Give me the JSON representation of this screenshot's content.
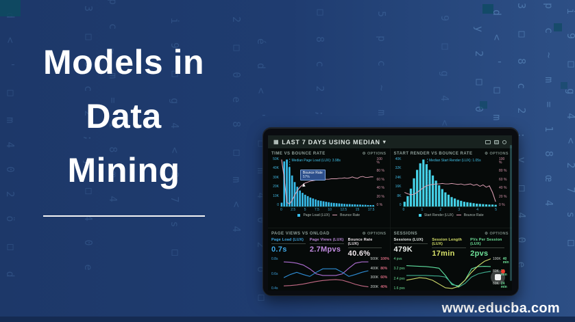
{
  "page": {
    "title_lines": [
      "Models in",
      "Data",
      "Mining"
    ],
    "website": "www.educba.com"
  },
  "background": {
    "glyph_columns": [
      "é d < ' □ m 4 0 2 ö □ d",
      "3 □ 8 c 2 ; y □ 4 0 e",
      "5 p c ~ m = 1 8 œ 4",
      "i 9 □ g 4 < 2 7 s □",
      "y 2 □ 0 e 8 □ m < 4"
    ]
  },
  "dashboard": {
    "header": {
      "title": "LAST 7 DAYS USING MEDIAN"
    }
  },
  "chart_data": [
    {
      "id": "time-vs-bounce",
      "type": "bar",
      "title": "TIME VS BOUNCE RATE",
      "options_label": "OPTIONS",
      "median_label": "Median Page Load (LUX): 3.98s",
      "median_x_frac": 0.1,
      "bar_color": "#38bdeb",
      "line_color": "#dfa0b5",
      "x_ticks": [
        "0",
        "2.5",
        "5",
        "7.5",
        "10",
        "12.5",
        "15",
        "17.5"
      ],
      "y_left_ticks": [
        "50K",
        "40K",
        "30K",
        "20K",
        "10K",
        "0"
      ],
      "y_right_ticks": [
        "100 %",
        "80 %",
        "60 %",
        "40 %",
        "20 %",
        "0 %"
      ],
      "legend": [
        {
          "label": "Page Load (LUX)",
          "type": "square",
          "color": "#38bdeb"
        },
        {
          "label": "Bounce Rate",
          "type": "line",
          "color": "#dfa0b5"
        }
      ],
      "bars": [
        8,
        96,
        100,
        84,
        66,
        52,
        42,
        34,
        29,
        25,
        22,
        19,
        17,
        15,
        13,
        12,
        11,
        10,
        9,
        8,
        7.5,
        7,
        6.5,
        6,
        5.5,
        5,
        5,
        4.5,
        4.5,
        4,
        4,
        3.5,
        3.5,
        3,
        3,
        3
      ],
      "line_pct": [
        100,
        60,
        9,
        5,
        13,
        24,
        34,
        41,
        46,
        50,
        52,
        54,
        55,
        56,
        57,
        57,
        58,
        58,
        58,
        59,
        59,
        59,
        60,
        60,
        61,
        60,
        61,
        63,
        61,
        60,
        63,
        64,
        62,
        62,
        63,
        63
      ],
      "tooltip": {
        "title": "Bounce Rate",
        "value": "57%"
      }
    },
    {
      "id": "start-render-vs-bounce",
      "type": "bar",
      "title": "START RENDER VS BOUNCE RATE",
      "options_label": "OPTIONS",
      "median_label": "Median Start Render (LUX): 1.05s",
      "median_x_frac": 0.26,
      "bar_color": "#45d2e8",
      "line_color": "#dfa0b5",
      "x_ticks": [
        "0",
        "1",
        "2",
        "3",
        "4",
        "5"
      ],
      "y_left_ticks": [
        "40K",
        "32K",
        "24K",
        "16K",
        "8K",
        "0"
      ],
      "y_right_ticks": [
        "100 %",
        "80 %",
        "60 %",
        "40 %",
        "20 %",
        "0 %"
      ],
      "legend": [
        {
          "label": "Start Render (LUX)",
          "type": "square",
          "color": "#45d2e8"
        },
        {
          "label": "Bounce Rate",
          "type": "line",
          "color": "#dfa0b5"
        }
      ],
      "bars": [
        10,
        22,
        38,
        60,
        78,
        92,
        100,
        90,
        78,
        66,
        55,
        45,
        37,
        30,
        25,
        20,
        17,
        14,
        12,
        10,
        9,
        8,
        7,
        6,
        5.5,
        5,
        4.5,
        4,
        4,
        3.5
      ],
      "line_pct": [
        30,
        27,
        25,
        26,
        30,
        35,
        40,
        44,
        46,
        47,
        48,
        48,
        49,
        48,
        48,
        49,
        48,
        47,
        48,
        46,
        47,
        48,
        45,
        47,
        43,
        46,
        41,
        44,
        30,
        10
      ]
    },
    {
      "id": "page-views-vs-onload",
      "type": "line",
      "title": "PAGE VIEWS VS ONLOAD",
      "options_label": "OPTIONS",
      "metrics": [
        {
          "label": "Page Load (LUX)",
          "value": "0.7s",
          "color": "#3fa9e8"
        },
        {
          "label": "Page Views (LUX)",
          "value": "2.7Mpvs",
          "color": "#c18be0"
        },
        {
          "label": "Bounce Rate (LUX)",
          "value": "40.6%",
          "color": "#f2e9ee"
        }
      ],
      "y_left_ticks": [
        "0.8s",
        "0.6s",
        "0.4s"
      ],
      "y_left_color": "#3fa9e8",
      "pair_color": "#d56a7f",
      "y_right_pairs": [
        [
          "500K",
          "100%"
        ],
        [
          "400K",
          "80%"
        ],
        [
          "300K",
          "60%"
        ],
        [
          "200K",
          "40%"
        ]
      ],
      "series": [
        {
          "name": "Page Views",
          "color": "#b06fd4",
          "values": [
            88,
            87,
            84,
            78,
            66,
            50,
            45,
            45,
            45,
            50,
            68,
            84,
            88,
            88
          ]
        },
        {
          "name": "Page Load",
          "color": "#2f8fd8",
          "values": [
            38,
            48,
            55,
            48,
            42,
            55,
            66,
            66,
            66,
            55,
            42,
            48,
            55,
            60
          ]
        },
        {
          "name": "Bounce Rate",
          "color": "#c46a85",
          "values": [
            12,
            13,
            15,
            18,
            22,
            26,
            29,
            31,
            32,
            30,
            24,
            17,
            12,
            9
          ]
        }
      ]
    },
    {
      "id": "sessions",
      "type": "line",
      "title": "SESSIONS",
      "options_label": "OPTIONS",
      "metrics": [
        {
          "label": "Sessions (LUX)",
          "value": "479K",
          "color": "#eef2ef"
        },
        {
          "label": "Session Length (LUX)",
          "value": "17min",
          "color": "#d9e36a"
        },
        {
          "label": "PVs Per Session (LUX)",
          "value": "2pvs",
          "color": "#6fe39a"
        }
      ],
      "y_left_ticks": [
        "4 pvs",
        "3.2 pvs",
        "2.4 pvs",
        "1.6 pvs"
      ],
      "y_left_color": "#6fe39a",
      "pair_color": "#6fe39a",
      "y_right_pairs": [
        [
          "100K",
          "40 min"
        ],
        [
          "80K",
          "32 min"
        ],
        [
          "60K",
          "24 min"
        ]
      ],
      "series": [
        {
          "name": "Sessions",
          "color": "#5fe0a0",
          "values": [
            76,
            75,
            74,
            73,
            71,
            68,
            45,
            16,
            12,
            30,
            66,
            73,
            74,
            73
          ]
        },
        {
          "name": "PVs Per Session",
          "color": "#3fae8f",
          "values": [
            45,
            45,
            45,
            45,
            44,
            43,
            40,
            20,
            8,
            20,
            40,
            50,
            55,
            58
          ]
        },
        {
          "name": "Session Length",
          "color": "#cdd96a",
          "values": [
            30,
            34,
            38,
            36,
            30,
            18,
            6,
            4,
            10,
            30,
            55,
            75,
            90,
            98
          ]
        }
      ]
    }
  ]
}
